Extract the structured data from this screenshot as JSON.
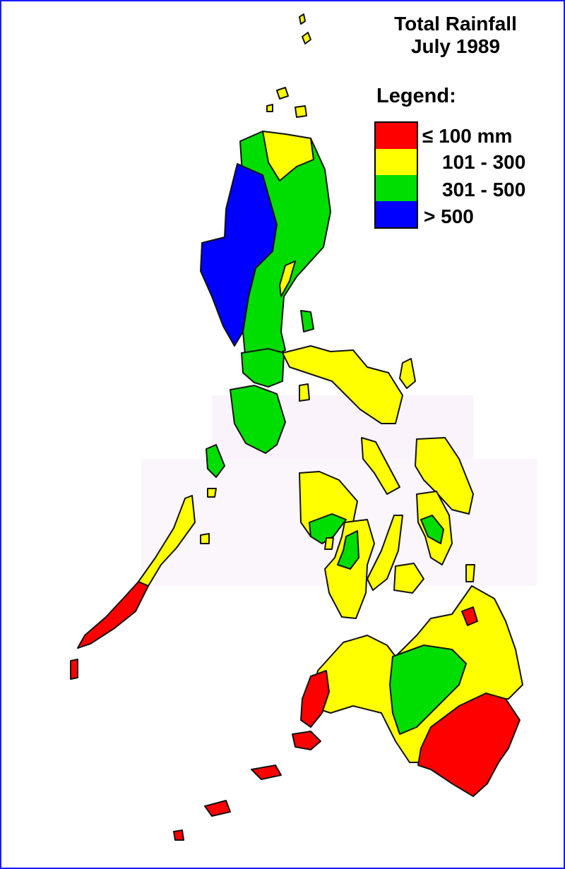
{
  "title": {
    "line1": "Total Rainfall",
    "line2": "July 1989"
  },
  "legend": {
    "heading": "Legend:",
    "items": [
      {
        "label": "≤ 100 mm",
        "color": "#ff0000"
      },
      {
        "label": "101 - 300",
        "color": "#ffff00"
      },
      {
        "label": "301 - 500",
        "color": "#00dd00"
      },
      {
        "label": "> 500",
        "color": "#0000ff"
      }
    ]
  },
  "colors": {
    "frame": "#1a1aff",
    "red": "#ff0000",
    "yellow": "#ffff00",
    "green": "#00dd00",
    "blue": "#0000ff"
  }
}
